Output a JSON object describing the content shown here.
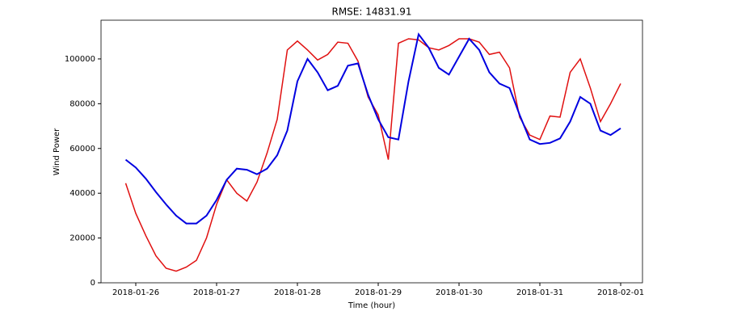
{
  "chart_data": {
    "type": "line",
    "title": "RMSE: 14831.91",
    "xlabel": "Time (hour)",
    "ylabel": "Wind Power",
    "x": [
      -0.125,
      0,
      0.125,
      0.25,
      0.375,
      0.5,
      0.625,
      0.75,
      0.875,
      1,
      1.125,
      1.25,
      1.375,
      1.5,
      1.625,
      1.75,
      1.875,
      2,
      2.125,
      2.25,
      2.375,
      2.5,
      2.625,
      2.75,
      2.875,
      3,
      3.125,
      3.25,
      3.375,
      3.5,
      3.625,
      3.75,
      3.875,
      4,
      4.125,
      4.25,
      4.375,
      4.5,
      4.625,
      4.75,
      4.875,
      5,
      5.125,
      5.25,
      5.375,
      5.5,
      5.625,
      5.75,
      5.875,
      6
    ],
    "series": [
      {
        "color": "#e01010",
        "values": [
          44500,
          31000,
          21000,
          12000,
          6500,
          5200,
          7000,
          10000,
          20000,
          35000,
          46000,
          40000,
          36500,
          45000,
          58000,
          73000,
          104000,
          108000,
          104000,
          99500,
          102000,
          107500,
          107000,
          99000,
          83000,
          75000,
          55000,
          107000,
          109000,
          108500,
          105000,
          104000,
          106000,
          109000,
          109000,
          107500,
          102000,
          103000,
          96000,
          74000,
          66000,
          64000,
          74500,
          74000,
          94000,
          100000,
          87000,
          72000,
          80000,
          89000
        ]
      },
      {
        "color": "#0000e0",
        "values": [
          55000,
          51500,
          46500,
          40500,
          35000,
          30000,
          26500,
          26500,
          30000,
          37000,
          46000,
          51000,
          50500,
          48500,
          51000,
          57000,
          68000,
          90000,
          100000,
          94000,
          86000,
          88000,
          97000,
          98000,
          84000,
          73000,
          65000,
          64000,
          90000,
          111000,
          105000,
          96000,
          93000,
          101000,
          109000,
          104000,
          94000,
          89000,
          87000,
          75000,
          64000,
          62000,
          62500,
          64500,
          72000,
          83000,
          80000,
          68000,
          66000,
          69000
        ]
      }
    ],
    "xlim": [
      -0.43,
      6.27
    ],
    "xticks": [
      {
        "value": 0,
        "label": "2018-01-26"
      },
      {
        "value": 1,
        "label": "2018-01-27"
      },
      {
        "value": 2,
        "label": "2018-01-28"
      },
      {
        "value": 3,
        "label": "2018-01-29"
      },
      {
        "value": 4,
        "label": "2018-01-30"
      },
      {
        "value": 5,
        "label": "2018-01-31"
      },
      {
        "value": 6,
        "label": "2018-02-01"
      }
    ],
    "ylim": [
      0,
      117300
    ],
    "yticks": [
      0,
      20000,
      40000,
      60000,
      80000,
      100000
    ]
  }
}
